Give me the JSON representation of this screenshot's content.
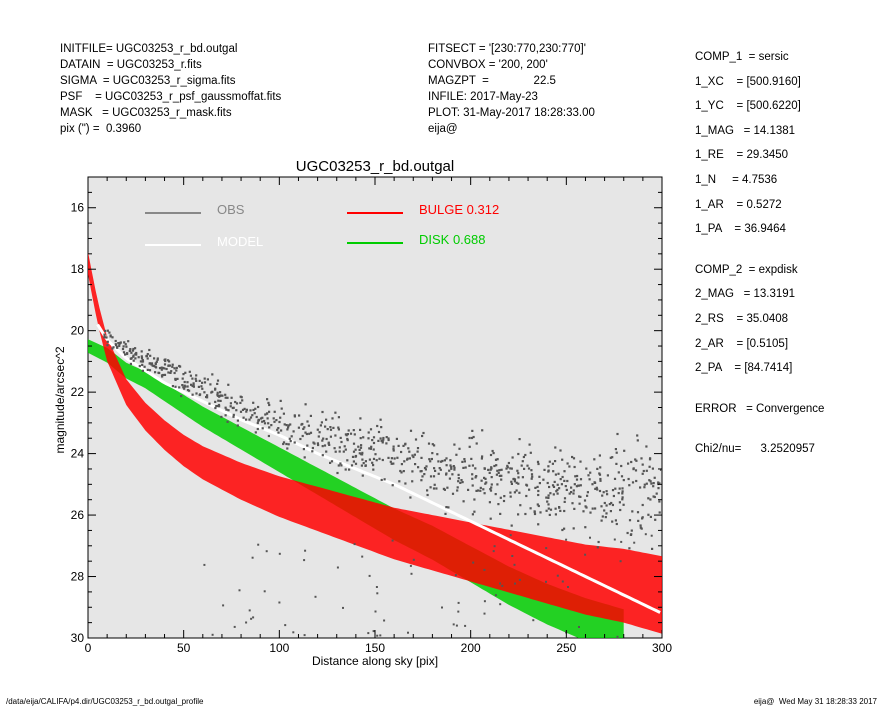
{
  "header_left": [
    "INITFILE= UGC03253_r_bd.outgal",
    "DATAIN  = UGC03253_r.fits",
    "SIGMA  = UGC03253_r_sigma.fits",
    "PSF    = UGC03253_r_psf_gaussmoffat.fits",
    "MASK   = UGC03253_r_mask.fits",
    "pix (\") =  0.3960"
  ],
  "header_mid": [
    "FITSECT = '[230:770,230:770]'",
    "CONVBOX = '200, 200'",
    "MAGZPT  =              22.5",
    "INFILE: 2017-May-23",
    "PLOT: 31-May-2017 18:28:33.00",
    "eija@"
  ],
  "header_right": [
    "COMP_1  = sersic",
    "1_XC    = [500.9160]",
    "1_YC    = [500.6220]",
    "1_MAG   = 14.1381",
    "1_RE    = 29.3450",
    "1_N     = 4.7536",
    "1_AR    = 0.5272",
    "1_PA    = 36.9464",
    "",
    "COMP_2  = expdisk",
    "2_MAG   = 13.3191",
    "2_RS    = 35.0408",
    "2_AR    = [0.5105]",
    "2_PA    = [84.7414]",
    "",
    "ERROR   = Convergence",
    "",
    "Chi2/nu=      3.2520957"
  ],
  "footer_left": "/data/eija/CALIFA/p4.dir/UGC03253_r_bd.outgal_profile",
  "footer_right": "eija@  Wed May 31 18:28:33 2017",
  "colors": {
    "plot_bg": "#e6e6e6",
    "obs": "#555555",
    "model": "#ffffff",
    "bulge": "#ff0000",
    "disk": "#00cc00"
  },
  "chart_data": {
    "type": "scatter",
    "title": "UGC03253_r_bd.outgal",
    "xlabel": "Distance along sky [pix]",
    "ylabel": "magnitude/arcsec^2",
    "xlim": [
      0,
      300
    ],
    "ylim": [
      30,
      15
    ],
    "y_inverted": true,
    "xticks": [
      0,
      50,
      100,
      150,
      200,
      250,
      300
    ],
    "yticks": [
      16,
      18,
      20,
      22,
      24,
      26,
      28,
      30
    ],
    "legend": [
      {
        "label": "OBS",
        "color": "#888888"
      },
      {
        "label": "MODEL",
        "color": "#ffffff"
      },
      {
        "label": "BULGE  0.312",
        "color": "#ff0000"
      },
      {
        "label": "DISK  0.688",
        "color": "#00cc00"
      }
    ],
    "series": [
      {
        "name": "OBS",
        "points": [
          [
            10,
            20.2
          ],
          [
            20,
            20.6
          ],
          [
            30,
            21.0
          ],
          [
            40,
            21.3
          ],
          [
            50,
            21.6
          ],
          [
            60,
            21.9
          ],
          [
            70,
            22.2
          ],
          [
            80,
            22.5
          ],
          [
            90,
            22.7
          ],
          [
            100,
            23.0
          ],
          [
            120,
            23.4
          ],
          [
            140,
            23.8
          ],
          [
            160,
            24.1
          ],
          [
            180,
            24.4
          ],
          [
            200,
            24.6
          ],
          [
            220,
            24.8
          ],
          [
            240,
            25.0
          ],
          [
            260,
            25.1
          ],
          [
            280,
            25.2
          ],
          [
            300,
            25.3
          ]
        ]
      },
      {
        "name": "MODEL",
        "points": [
          [
            5,
            19.8
          ],
          [
            10,
            20.3
          ],
          [
            20,
            20.9
          ],
          [
            30,
            21.3
          ],
          [
            40,
            21.7
          ],
          [
            50,
            22.0
          ],
          [
            60,
            22.3
          ],
          [
            80,
            22.9
          ],
          [
            100,
            23.4
          ],
          [
            120,
            24.0
          ],
          [
            140,
            24.5
          ],
          [
            160,
            25.0
          ],
          [
            180,
            25.6
          ],
          [
            200,
            26.2
          ],
          [
            220,
            26.8
          ],
          [
            240,
            27.4
          ],
          [
            260,
            28.0
          ],
          [
            280,
            28.6
          ],
          [
            300,
            29.2
          ]
        ]
      },
      {
        "name": "BULGE",
        "points": [
          [
            0,
            17.8
          ],
          [
            5,
            19.4
          ],
          [
            10,
            20.6
          ],
          [
            20,
            22.0
          ],
          [
            30,
            22.8
          ],
          [
            40,
            23.4
          ],
          [
            50,
            23.9
          ],
          [
            60,
            24.3
          ],
          [
            80,
            24.9
          ],
          [
            100,
            25.4
          ],
          [
            120,
            25.8
          ],
          [
            140,
            26.2
          ],
          [
            160,
            26.6
          ],
          [
            180,
            26.9
          ],
          [
            200,
            27.2
          ],
          [
            220,
            27.5
          ],
          [
            240,
            27.8
          ],
          [
            260,
            28.1
          ],
          [
            280,
            28.3
          ],
          [
            300,
            28.6
          ]
        ]
      },
      {
        "name": "DISK",
        "points": [
          [
            0,
            20.5
          ],
          [
            10,
            20.8
          ],
          [
            20,
            21.3
          ],
          [
            30,
            21.6
          ],
          [
            40,
            22.0
          ],
          [
            50,
            22.4
          ],
          [
            60,
            22.8
          ],
          [
            80,
            23.5
          ],
          [
            100,
            24.2
          ],
          [
            120,
            24.9
          ],
          [
            140,
            25.6
          ],
          [
            160,
            26.3
          ],
          [
            180,
            26.9
          ],
          [
            200,
            27.6
          ],
          [
            220,
            28.3
          ],
          [
            240,
            28.9
          ],
          [
            260,
            29.4
          ],
          [
            280,
            29.8
          ]
        ]
      }
    ]
  }
}
